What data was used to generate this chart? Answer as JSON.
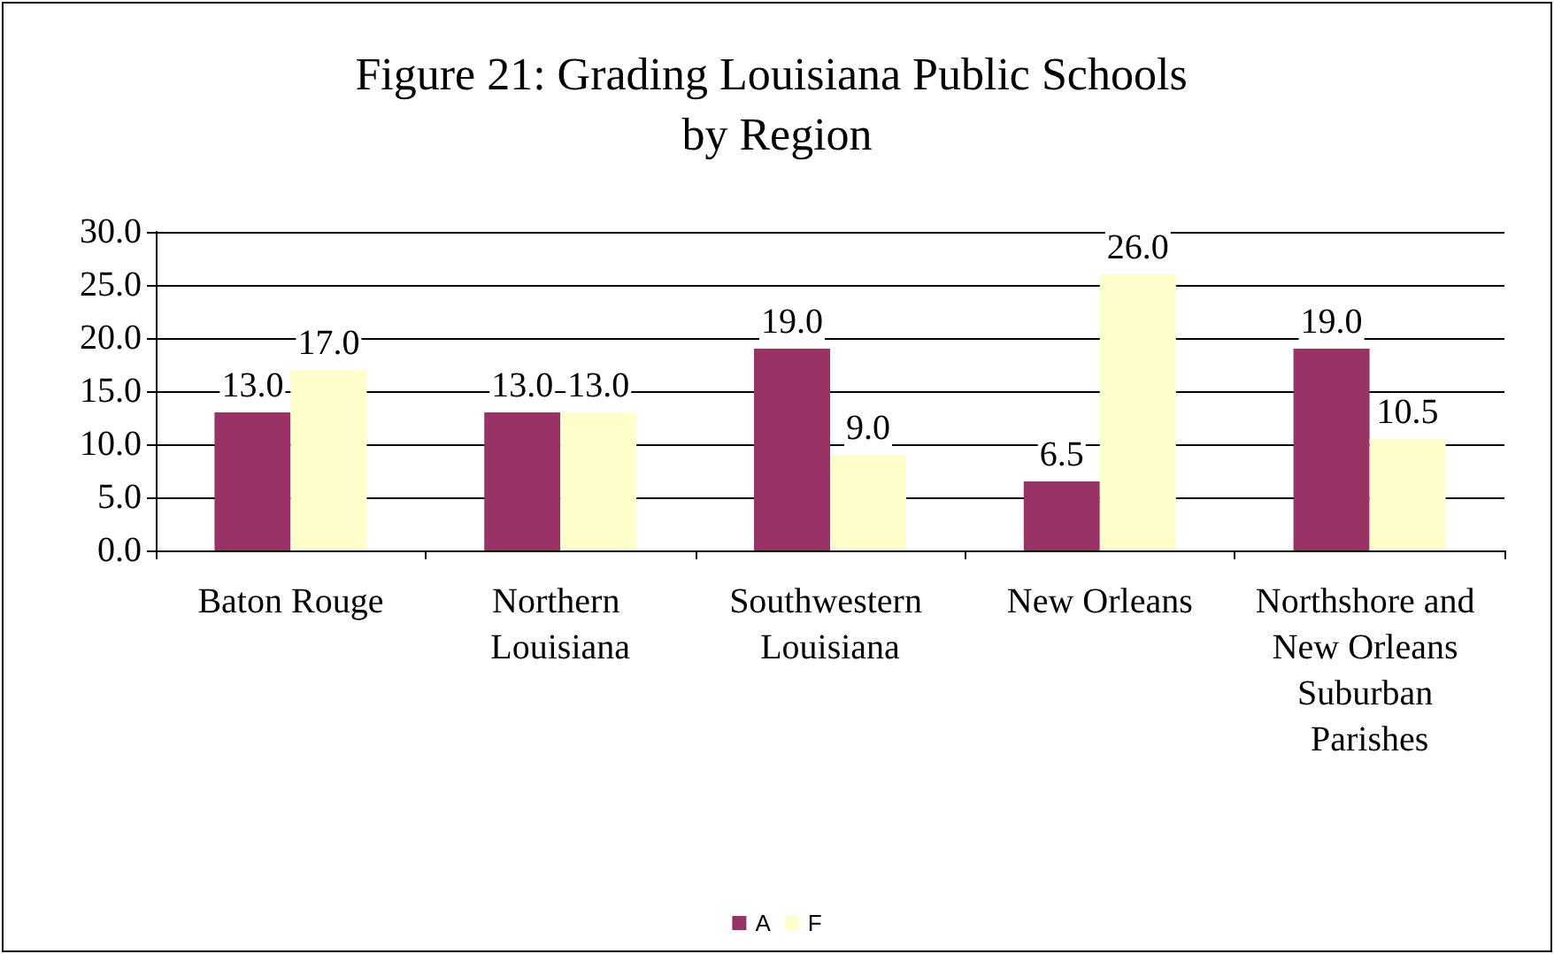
{
  "chart_data": {
    "type": "bar",
    "title": "Figure 21: Grading Louisiana Public Schools by Region",
    "categories": [
      "Baton Rouge",
      "Northern Louisiana",
      "Southwestern Louisiana",
      "New Orleans",
      "Northshore and New Orleans Suburban Parishes"
    ],
    "series": [
      {
        "name": "A",
        "color": "#993366",
        "values": [
          13.0,
          13.0,
          19.0,
          6.5,
          19.0
        ],
        "value_labels": [
          "13.0",
          "13.0",
          "19.0",
          "6.5",
          "19.0"
        ]
      },
      {
        "name": "F",
        "color": "#ffffcc",
        "values": [
          17.0,
          13.0,
          9.0,
          26.0,
          10.5
        ],
        "value_labels": [
          "17.0",
          "13.0",
          "9.0",
          "26.0",
          "10.5"
        ]
      }
    ],
    "ylim": [
      0,
      30
    ],
    "yticks": [
      {
        "value": 0,
        "label": "0.0"
      },
      {
        "value": 5,
        "label": "5.0"
      },
      {
        "value": 10,
        "label": "10.0"
      },
      {
        "value": 15,
        "label": "15.0"
      },
      {
        "value": 20,
        "label": "20.0"
      },
      {
        "value": 25,
        "label": "25.0"
      },
      {
        "value": 30,
        "label": "30.0"
      }
    ],
    "grid": "y",
    "legend": "bottom"
  }
}
